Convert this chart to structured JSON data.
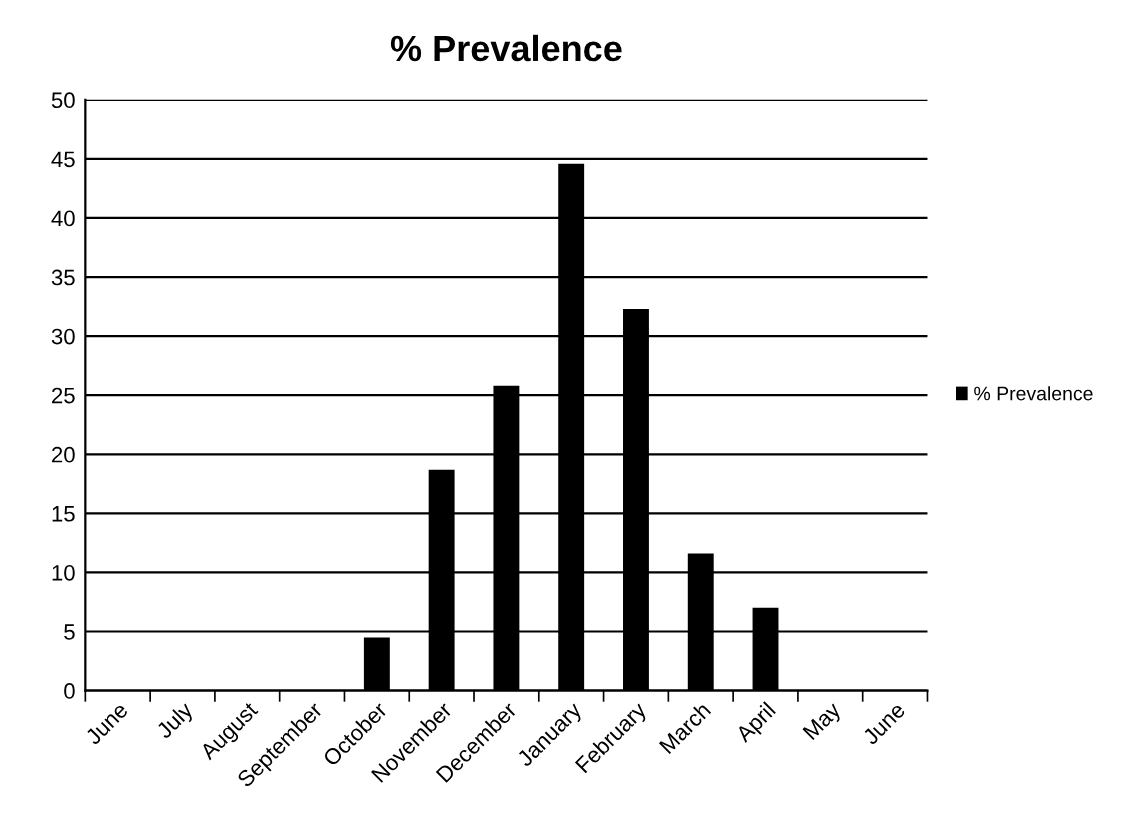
{
  "chart_data": {
    "type": "bar",
    "title": "% Prevalence",
    "categories": [
      "June",
      "July",
      "August",
      "September",
      "October",
      "November",
      "December",
      "January",
      "February",
      "March",
      "April",
      "May",
      "June"
    ],
    "series": [
      {
        "name": "% Prevalence",
        "color": "#000000",
        "values": [
          0,
          0,
          0,
          0,
          4.5,
          18.7,
          25.8,
          44.6,
          32.3,
          11.6,
          7.0,
          0,
          0
        ]
      }
    ],
    "ylim": [
      0,
      50
    ],
    "yticks": [
      0,
      5,
      10,
      15,
      20,
      25,
      30,
      35,
      40,
      45,
      50
    ],
    "grid": "y",
    "legend": "right"
  }
}
